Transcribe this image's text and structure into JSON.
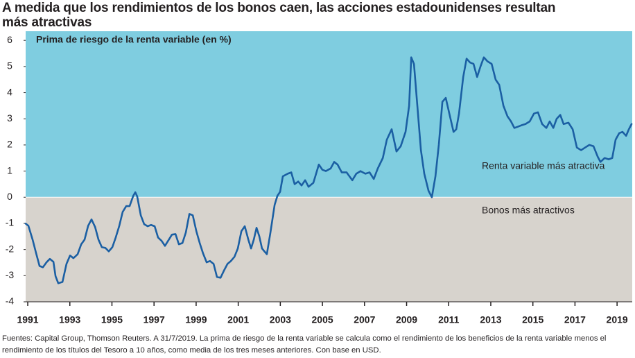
{
  "chart_data": {
    "type": "line",
    "title": "A medida que los rendimientos de los bonos caen, las acciones estadounidenses resultan más atractivas",
    "y_label": "Prima de riesgo de la renta variable (en %)",
    "annotations": [
      "Renta variable más atractiva",
      "Bonos más atractivos"
    ],
    "footnote": "Fuentes: Capital Group, Thomson Reuters. A 31/7/2019. La prima de riesgo de la renta variable se calcula como el rendimiento de los beneficios de la renta variable menos el rendimiento de los títulos del Tesoro a 10 años, como media de los tres meses anteriores. Con base en USD.",
    "color": "#1b5fa3",
    "above_color": "#7fcde0",
    "below_color": "#d7d3cd",
    "xlim": [
      1990.9,
      2019.72
    ],
    "xticks": [
      1991,
      1993,
      1995,
      1997,
      1999,
      2001,
      2003,
      2005,
      2007,
      2009,
      2011,
      2013,
      2015,
      2017,
      2019
    ],
    "ylim": [
      -4,
      6.35
    ],
    "yticks": [
      -4,
      -3,
      -2,
      -1,
      0,
      1,
      2,
      3,
      4,
      5,
      6
    ],
    "x": [
      1990.9,
      1991.03,
      1991.23,
      1991.4,
      1991.56,
      1991.72,
      1991.89,
      1992.05,
      1992.22,
      1992.32,
      1992.45,
      1992.65,
      1992.84,
      1993.01,
      1993.17,
      1993.37,
      1993.54,
      1993.7,
      1993.87,
      1994.03,
      1994.2,
      1994.36,
      1994.52,
      1994.69,
      1994.85,
      1995.02,
      1995.18,
      1995.35,
      1995.51,
      1995.68,
      1995.84,
      1996.01,
      1996.11,
      1996.2,
      1996.37,
      1996.53,
      1996.7,
      1996.86,
      1997.03,
      1997.19,
      1997.36,
      1997.52,
      1997.69,
      1997.85,
      1998.02,
      1998.18,
      1998.35,
      1998.51,
      1998.68,
      1998.84,
      1999.01,
      1999.17,
      1999.33,
      1999.5,
      1999.66,
      1999.83,
      1999.99,
      2000.16,
      2000.32,
      2000.49,
      2000.65,
      2000.82,
      2000.98,
      2001.15,
      2001.31,
      2001.48,
      2001.61,
      2001.74,
      2001.87,
      2002.0,
      2002.13,
      2002.36,
      2002.53,
      2002.73,
      2002.86,
      2002.99,
      2003.12,
      2003.35,
      2003.52,
      2003.68,
      2003.85,
      2004.01,
      2004.18,
      2004.34,
      2004.57,
      2004.83,
      2005.0,
      2005.16,
      2005.39,
      2005.56,
      2005.72,
      2005.92,
      2006.15,
      2006.42,
      2006.61,
      2006.81,
      2007.04,
      2007.24,
      2007.44,
      2007.63,
      2007.87,
      2008.06,
      2008.29,
      2008.52,
      2008.72,
      2008.95,
      2009.12,
      2009.22,
      2009.35,
      2009.51,
      2009.68,
      2009.84,
      2010.04,
      2010.2,
      2010.37,
      2010.53,
      2010.7,
      2010.86,
      2011.03,
      2011.23,
      2011.36,
      2011.49,
      2011.69,
      2011.85,
      2012.02,
      2012.18,
      2012.35,
      2012.51,
      2012.67,
      2012.84,
      2013.04,
      2013.23,
      2013.4,
      2013.6,
      2013.79,
      2013.96,
      2014.12,
      2014.29,
      2014.45,
      2014.65,
      2014.85,
      2015.05,
      2015.24,
      2015.44,
      2015.64,
      2015.8,
      2015.97,
      2016.13,
      2016.3,
      2016.46,
      2016.69,
      2016.89,
      2017.09,
      2017.29,
      2017.48,
      2017.68,
      2017.88,
      2018.08,
      2018.21,
      2018.41,
      2018.6,
      2018.77,
      2018.93,
      2019.1,
      2019.26,
      2019.43,
      2019.56,
      2019.69
    ],
    "values": [
      -1.01,
      -1.09,
      -1.62,
      -2.15,
      -2.63,
      -2.68,
      -2.49,
      -2.36,
      -2.47,
      -3.02,
      -3.29,
      -3.24,
      -2.55,
      -2.23,
      -2.33,
      -2.18,
      -1.8,
      -1.62,
      -1.09,
      -0.85,
      -1.14,
      -1.62,
      -1.91,
      -1.94,
      -2.07,
      -1.91,
      -1.54,
      -1.09,
      -0.56,
      -0.34,
      -0.34,
      0.05,
      0.19,
      0.03,
      -0.69,
      -1.03,
      -1.11,
      -1.06,
      -1.11,
      -1.54,
      -1.67,
      -1.86,
      -1.64,
      -1.43,
      -1.41,
      -1.8,
      -1.75,
      -1.35,
      -0.64,
      -0.69,
      -1.3,
      -1.75,
      -2.15,
      -2.49,
      -2.44,
      -2.55,
      -3.05,
      -3.08,
      -2.81,
      -2.55,
      -2.44,
      -2.28,
      -1.96,
      -1.3,
      -1.11,
      -1.62,
      -1.96,
      -1.62,
      -1.17,
      -1.49,
      -1.96,
      -2.18,
      -1.35,
      -0.29,
      0.05,
      0.21,
      0.8,
      0.9,
      0.95,
      0.5,
      0.6,
      0.45,
      0.65,
      0.4,
      0.55,
      1.25,
      1.05,
      1.0,
      1.1,
      1.35,
      1.25,
      0.95,
      0.95,
      0.65,
      0.9,
      1.0,
      0.9,
      0.95,
      0.7,
      1.1,
      1.5,
      2.2,
      2.6,
      1.75,
      1.95,
      2.5,
      3.5,
      5.35,
      5.1,
      3.5,
      1.8,
      0.9,
      0.25,
      0.0,
      0.8,
      2.0,
      3.65,
      3.8,
      3.2,
      2.5,
      2.6,
      3.2,
      4.6,
      5.3,
      5.15,
      5.1,
      4.6,
      5.0,
      5.35,
      5.2,
      5.1,
      4.5,
      4.3,
      3.5,
      3.1,
      2.9,
      2.65,
      2.7,
      2.75,
      2.8,
      2.9,
      3.2,
      3.25,
      2.8,
      2.65,
      2.9,
      2.65,
      3.0,
      3.15,
      2.8,
      2.85,
      2.6,
      1.9,
      1.8,
      1.9,
      2.0,
      1.95,
      1.55,
      1.35,
      1.5,
      1.45,
      1.5,
      2.2,
      2.45,
      2.5,
      2.35,
      2.6,
      2.8
    ]
  }
}
